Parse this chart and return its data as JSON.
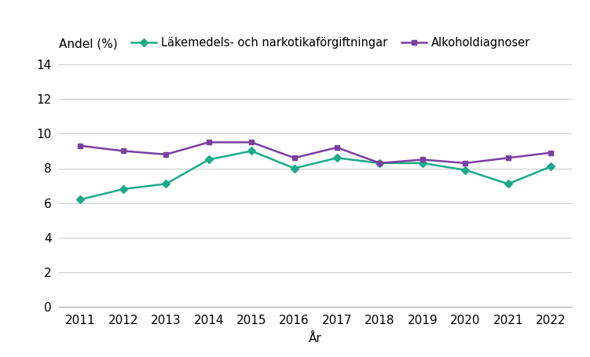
{
  "years": [
    2011,
    2012,
    2013,
    2014,
    2015,
    2016,
    2017,
    2018,
    2019,
    2020,
    2021,
    2022
  ],
  "lakemedels": [
    6.2,
    6.8,
    7.1,
    8.5,
    9.0,
    8.0,
    8.6,
    8.3,
    8.3,
    7.9,
    7.1,
    8.1
  ],
  "alkohol": [
    9.3,
    9.0,
    8.8,
    9.5,
    9.5,
    8.6,
    9.2,
    8.3,
    8.5,
    8.3,
    8.6,
    8.9
  ],
  "lakemedels_color": "#1aaa8a",
  "alkohol_color": "#7b3fa0",
  "lakemedels_label": "Läkemedels- och narkotikaförgiftningar",
  "alkohol_label": "Alkoholdiagnoser",
  "andel_label": "Andel (%)",
  "xlabel": "År",
  "ylim": [
    0,
    14
  ],
  "yticks": [
    0,
    2,
    4,
    6,
    8,
    10,
    12,
    14
  ],
  "background_color": "#ffffff",
  "grid_color": "#cccccc",
  "marker_size": 5,
  "line_width": 1.8,
  "font_size": 11,
  "legend_font_size": 10.5,
  "tick_font_size": 11
}
